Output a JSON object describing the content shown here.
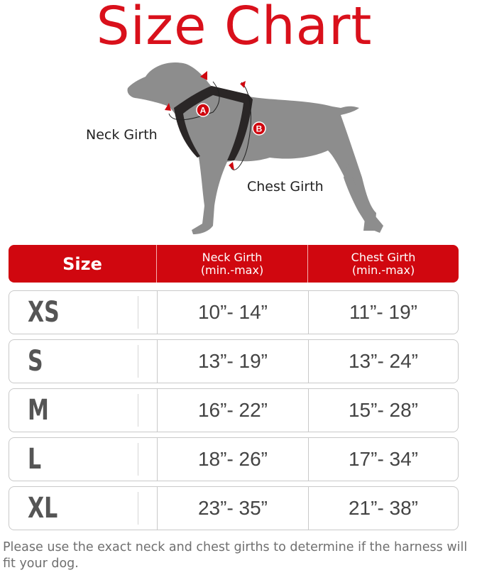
{
  "title": "Size Chart",
  "diagram": {
    "neck_label": "Neck Girth",
    "chest_label": "Chest Girth",
    "marker_a": "A",
    "marker_b": "B",
    "accent_color": "#d0070f"
  },
  "table": {
    "headers": {
      "size": "Size",
      "neck_line1": "Neck Girth",
      "neck_line2": "(min.-max)",
      "chest_line1": "Chest Girth",
      "chest_line2": "(min.-max)"
    },
    "rows": [
      {
        "size": "XS",
        "neck": "10”- 14”",
        "chest": "11”- 19”"
      },
      {
        "size": "S",
        "neck": "13”- 19”",
        "chest": "13”- 24”"
      },
      {
        "size": "M",
        "neck": "16”- 22”",
        "chest": "15”- 28”"
      },
      {
        "size": "L",
        "neck": "18”- 26”",
        "chest": "17”- 34”"
      },
      {
        "size": "XL",
        "neck": "23”- 35”",
        "chest": "21”- 38”"
      }
    ]
  },
  "note": "Please use the exact neck and chest girths to determine if the harness will fit your dog."
}
